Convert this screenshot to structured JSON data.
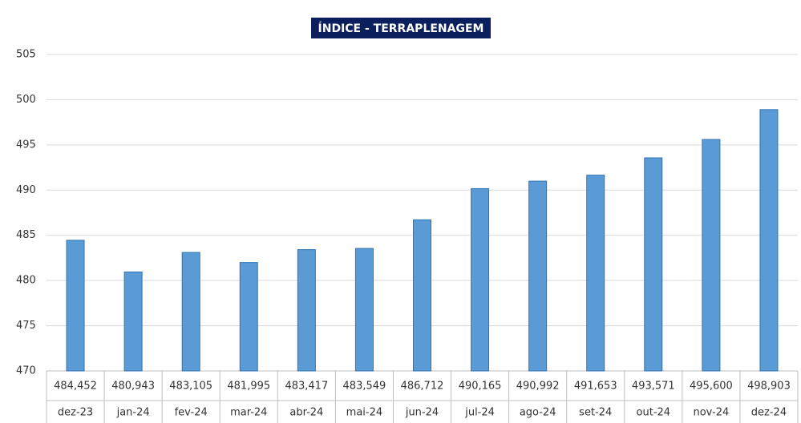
{
  "chart_data": {
    "type": "bar",
    "title": "ÍNDICE - TERRAPLENAGEM",
    "categories": [
      "dez-23",
      "jan-24",
      "fev-24",
      "mar-24",
      "abr-24",
      "mai-24",
      "jun-24",
      "jul-24",
      "ago-24",
      "set-24",
      "out-24",
      "nov-24",
      "dez-24"
    ],
    "values": [
      484.452,
      480.943,
      483.105,
      481.995,
      483.417,
      483.549,
      486.712,
      490.165,
      490.992,
      491.653,
      493.571,
      495.6,
      498.903
    ],
    "value_labels": [
      "484,452",
      "480,943",
      "483,105",
      "481,995",
      "483,417",
      "483,549",
      "486,712",
      "490,165",
      "490,992",
      "491,653",
      "493,571",
      "495,600",
      "498,903"
    ],
    "color": "#5b9bd5",
    "ylim": [
      470,
      505
    ],
    "yticks": [
      470,
      475,
      480,
      485,
      490,
      495,
      500,
      505
    ],
    "grid": true
  }
}
